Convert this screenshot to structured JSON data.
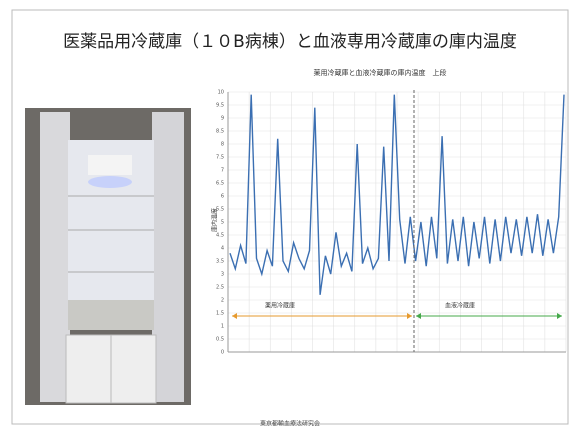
{
  "header": {
    "title": "医薬品用冷蔵庫（１０B病棟）と血液専用冷蔵庫の庫内温度"
  },
  "chart_data": {
    "type": "line",
    "title": "薬用冷蔵庫と血液冷蔵庫の庫内温度　上段",
    "y_label": "庫内温度",
    "ylim": [
      0,
      10
    ],
    "yticks": [
      0,
      0.5,
      1,
      1.5,
      2,
      2.5,
      3,
      3.5,
      4,
      4.5,
      5,
      5.5,
      6,
      6.5,
      7,
      7.5,
      8,
      8.5,
      9,
      9.5,
      10
    ],
    "grid": true,
    "color": "#3b6fb2",
    "values": [
      3.8,
      3.2,
      4.1,
      3.4,
      9.9,
      3.6,
      3.0,
      3.9,
      3.3,
      8.2,
      3.5,
      3.1,
      4.2,
      3.6,
      3.2,
      3.9,
      9.4,
      2.2,
      3.7,
      3.0,
      4.6,
      3.3,
      3.8,
      3.1,
      8.0,
      3.4,
      4.0,
      3.2,
      3.6,
      7.9,
      3.5,
      9.9,
      5.1,
      3.4,
      5.2,
      3.5,
      5.0,
      3.3,
      5.2,
      3.6,
      8.3,
      3.4,
      5.1,
      3.5,
      5.2,
      3.3,
      5.0,
      3.6,
      5.2,
      3.4,
      5.1,
      3.5,
      5.2,
      3.8,
      5.1,
      3.7,
      5.2,
      3.8,
      5.3,
      3.7,
      5.1,
      3.8,
      5.2,
      9.9
    ],
    "annotations": [
      "薬用冷蔵庫",
      "血液冷蔵庫"
    ]
  },
  "footer": "東京都輸血療法研究会"
}
